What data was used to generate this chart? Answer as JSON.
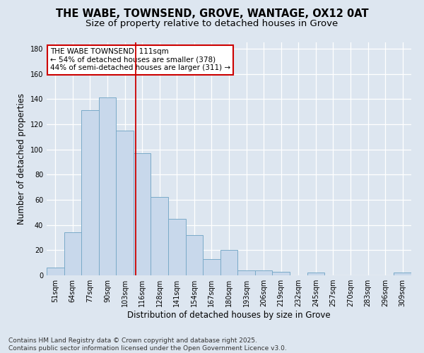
{
  "title_line1": "THE WABE, TOWNSEND, GROVE, WANTAGE, OX12 0AT",
  "title_line2": "Size of property relative to detached houses in Grove",
  "xlabel": "Distribution of detached houses by size in Grove",
  "ylabel": "Number of detached properties",
  "categories": [
    "51sqm",
    "64sqm",
    "77sqm",
    "90sqm",
    "103sqm",
    "116sqm",
    "128sqm",
    "141sqm",
    "154sqm",
    "167sqm",
    "180sqm",
    "193sqm",
    "206sqm",
    "219sqm",
    "232sqm",
    "245sqm",
    "257sqm",
    "270sqm",
    "283sqm",
    "296sqm",
    "309sqm"
  ],
  "values": [
    6,
    34,
    131,
    141,
    115,
    97,
    62,
    45,
    32,
    13,
    20,
    4,
    4,
    3,
    0,
    2,
    0,
    0,
    0,
    0,
    2
  ],
  "bar_color": "#c8d8eb",
  "bar_edge_color": "#7aaac8",
  "background_color": "#dde6f0",
  "grid_color": "#ffffff",
  "vline_color": "#cc0000",
  "annotation_text": "THE WABE TOWNSEND: 111sqm\n← 54% of detached houses are smaller (378)\n44% of semi-detached houses are larger (311) →",
  "annotation_box_facecolor": "#ffffff",
  "annotation_box_edgecolor": "#cc0000",
  "ylim": [
    0,
    185
  ],
  "yticks": [
    0,
    20,
    40,
    60,
    80,
    100,
    120,
    140,
    160,
    180
  ],
  "footer_text": "Contains HM Land Registry data © Crown copyright and database right 2025.\nContains public sector information licensed under the Open Government Licence v3.0.",
  "title_fontsize": 10.5,
  "subtitle_fontsize": 9.5,
  "tick_fontsize": 7,
  "label_fontsize": 8.5,
  "annotation_fontsize": 7.5,
  "footer_fontsize": 6.5
}
